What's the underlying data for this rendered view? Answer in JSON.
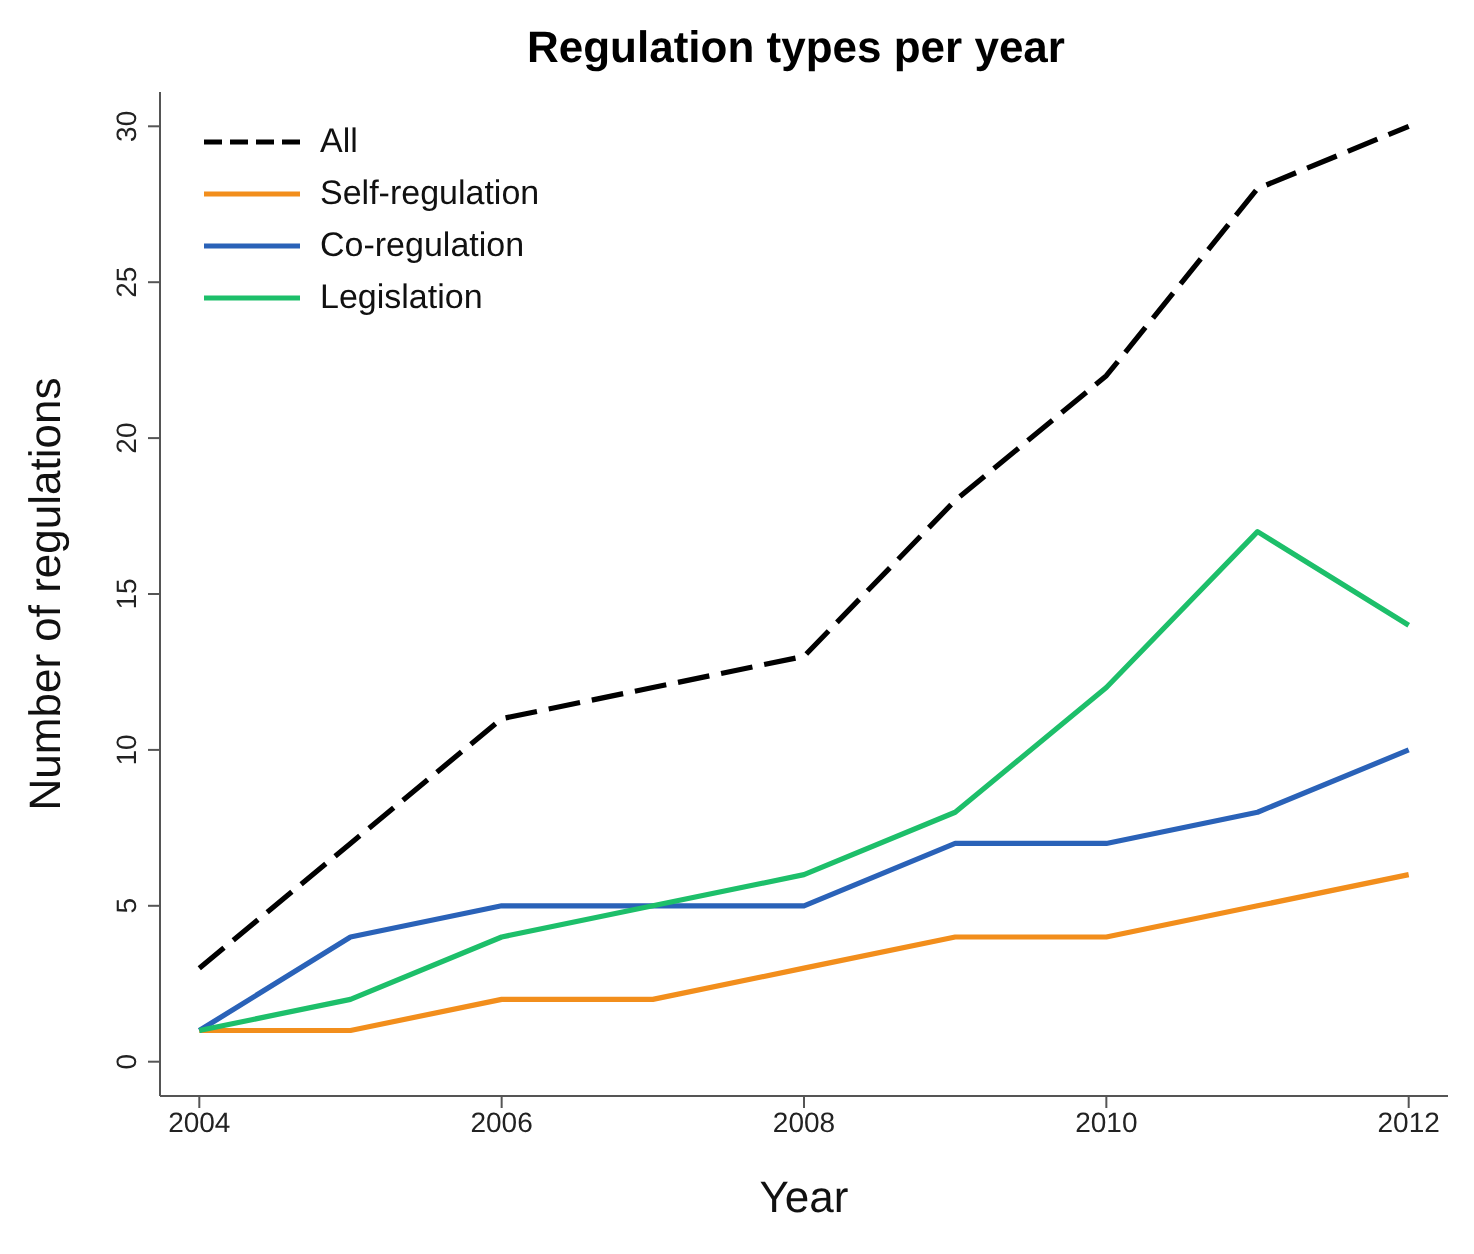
{
  "chart_data": {
    "type": "line",
    "title": "Regulation types per year",
    "xlabel": "Year",
    "ylabel": "Number of regulations",
    "x": [
      2004,
      2005,
      2006,
      2007,
      2008,
      2009,
      2010,
      2011,
      2012
    ],
    "series": [
      {
        "name": "All",
        "color": "#000000",
        "line_style": "dashed",
        "values": [
          3,
          7,
          11,
          12,
          13,
          18,
          22,
          28,
          30
        ]
      },
      {
        "name": "Self-regulation",
        "color": "#f28e1c",
        "values": [
          1,
          1,
          2,
          2,
          3,
          4,
          4,
          5,
          6
        ]
      },
      {
        "name": "Co-regulation",
        "color": "#2a62b8",
        "values": [
          1,
          4,
          5,
          5,
          5,
          7,
          7,
          8,
          10
        ]
      },
      {
        "name": "Legislation",
        "color": "#1dbf6a",
        "values": [
          1,
          2,
          4,
          5,
          6,
          8,
          12,
          17,
          14
        ]
      }
    ],
    "xlim": [
      2003.74,
      2012.26
    ],
    "xticks": [
      2004,
      2006,
      2008,
      2010,
      2012
    ],
    "ylim": [
      -1.1,
      31.1
    ],
    "yticks": [
      0,
      5,
      10,
      15,
      20,
      25,
      30
    ],
    "grid": false,
    "legend": "top left",
    "marker": "none",
    "line_style": "solid"
  }
}
